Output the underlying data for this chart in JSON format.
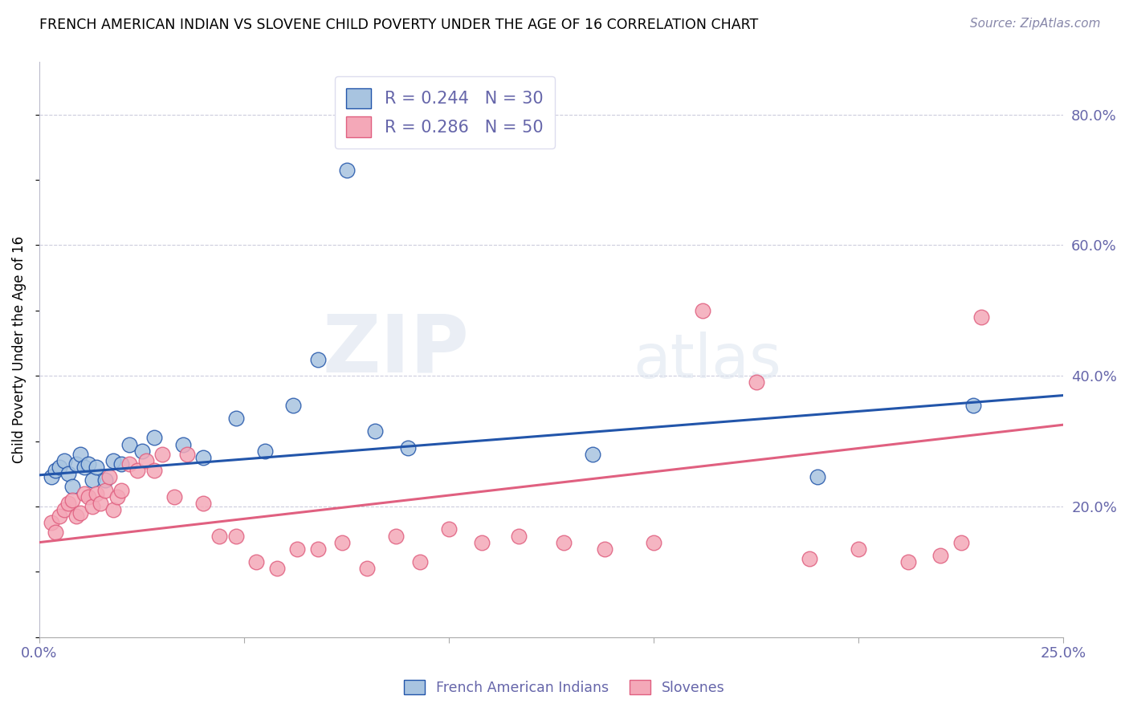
{
  "title": "FRENCH AMERICAN INDIAN VS SLOVENE CHILD POVERTY UNDER THE AGE OF 16 CORRELATION CHART",
  "source": "Source: ZipAtlas.com",
  "ylabel": "Child Poverty Under the Age of 16",
  "ylabel_right_ticks": [
    "20.0%",
    "40.0%",
    "60.0%",
    "80.0%"
  ],
  "ylabel_right_vals": [
    0.2,
    0.4,
    0.6,
    0.8
  ],
  "xlim": [
    0.0,
    0.25
  ],
  "ylim": [
    0.0,
    0.88
  ],
  "blue_R": 0.244,
  "blue_N": 30,
  "pink_R": 0.286,
  "pink_N": 50,
  "blue_color": "#a8c4e0",
  "pink_color": "#f4a8b8",
  "blue_line_color": "#2255aa",
  "pink_line_color": "#e06080",
  "legend_blue_label": "French American Indians",
  "legend_pink_label": "Slovenes",
  "watermark_zip": "ZIP",
  "watermark_atlas": "atlas",
  "blue_x": [
    0.003,
    0.004,
    0.005,
    0.006,
    0.007,
    0.008,
    0.009,
    0.01,
    0.011,
    0.012,
    0.013,
    0.014,
    0.016,
    0.018,
    0.02,
    0.022,
    0.025,
    0.028,
    0.035,
    0.04,
    0.048,
    0.055,
    0.062,
    0.068,
    0.075,
    0.082,
    0.09,
    0.135,
    0.19,
    0.228
  ],
  "blue_y": [
    0.245,
    0.255,
    0.26,
    0.27,
    0.25,
    0.23,
    0.265,
    0.28,
    0.26,
    0.265,
    0.24,
    0.26,
    0.24,
    0.27,
    0.265,
    0.295,
    0.285,
    0.305,
    0.295,
    0.275,
    0.335,
    0.285,
    0.355,
    0.425,
    0.715,
    0.315,
    0.29,
    0.28,
    0.245,
    0.355
  ],
  "pink_x": [
    0.003,
    0.004,
    0.005,
    0.006,
    0.007,
    0.008,
    0.009,
    0.01,
    0.011,
    0.012,
    0.013,
    0.014,
    0.015,
    0.016,
    0.017,
    0.018,
    0.019,
    0.02,
    0.022,
    0.024,
    0.026,
    0.028,
    0.03,
    0.033,
    0.036,
    0.04,
    0.044,
    0.048,
    0.053,
    0.058,
    0.063,
    0.068,
    0.074,
    0.08,
    0.087,
    0.093,
    0.1,
    0.108,
    0.117,
    0.128,
    0.138,
    0.15,
    0.162,
    0.175,
    0.188,
    0.2,
    0.212,
    0.22,
    0.225,
    0.23
  ],
  "pink_y": [
    0.175,
    0.16,
    0.185,
    0.195,
    0.205,
    0.21,
    0.185,
    0.19,
    0.22,
    0.215,
    0.2,
    0.22,
    0.205,
    0.225,
    0.245,
    0.195,
    0.215,
    0.225,
    0.265,
    0.255,
    0.27,
    0.255,
    0.28,
    0.215,
    0.28,
    0.205,
    0.155,
    0.155,
    0.115,
    0.105,
    0.135,
    0.135,
    0.145,
    0.105,
    0.155,
    0.115,
    0.165,
    0.145,
    0.155,
    0.145,
    0.135,
    0.145,
    0.5,
    0.39,
    0.12,
    0.135,
    0.115,
    0.125,
    0.145,
    0.49
  ],
  "blue_trend_x": [
    0.0,
    0.25
  ],
  "blue_trend_y": [
    0.248,
    0.37
  ],
  "pink_trend_x": [
    0.0,
    0.25
  ],
  "pink_trend_y": [
    0.145,
    0.325
  ]
}
